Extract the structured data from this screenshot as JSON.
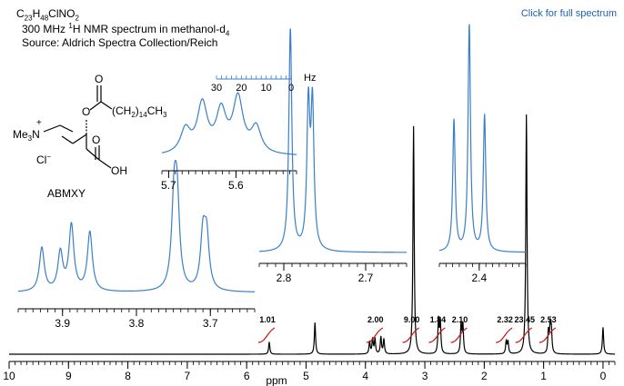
{
  "header": {
    "formula_c": "C",
    "formula_c_sub": "23",
    "formula_h": "H",
    "formula_h_sub": "48",
    "formula_rest": "ClNO",
    "formula_rest_sub": "2",
    "line2_pre": "300 MHz ",
    "line2_sup": "1",
    "line2_mid": "H NMR spectrum in methanol-d",
    "line2_sub": "4",
    "line3": "Source: Aldrich Spectra Collection/Reich",
    "full_spectrum_link": "Click for full spectrum"
  },
  "structure": {
    "nme3": "Me",
    "nme3_sub": "3",
    "n_label": "N",
    "plus": "+",
    "cl": "Cl",
    "cl_sup": "−",
    "o_ester": "O",
    "o_carbonyl": "O",
    "chain": "(CH",
    "chain_sub1": "2",
    "chain_paren": ")",
    "chain_sub2": "14",
    "chain_end": "CH",
    "chain_end_sub": "3",
    "acid_o": "O",
    "acid_oh": "OH",
    "label": "ABMXY"
  },
  "colors": {
    "main_trace": "#000000",
    "inset_trace": "#3a7fc8",
    "integral": "#cc1111",
    "label": "#000000"
  },
  "chart_data": [
    {
      "type": "line",
      "id": "main",
      "xlabel": "ppm",
      "xlim": [
        10,
        -0.2
      ],
      "x_ticks": [
        10,
        9,
        8,
        7,
        6,
        5,
        4,
        3,
        2,
        1,
        0
      ],
      "x_tick_labels": [
        "10",
        "9",
        "8",
        "7",
        "6",
        "5",
        "4",
        "3",
        "2",
        "1",
        "0"
      ],
      "peaks": [
        {
          "ppm": 5.62,
          "h": 0.05
        },
        {
          "ppm": 4.85,
          "h": 0.13
        },
        {
          "ppm": 3.93,
          "h": 0.05
        },
        {
          "ppm": 3.88,
          "h": 0.06
        },
        {
          "ppm": 3.84,
          "h": 0.06
        },
        {
          "ppm": 3.74,
          "h": 0.07
        },
        {
          "ppm": 3.69,
          "h": 0.06
        },
        {
          "ppm": 3.19,
          "h": 0.93
        },
        {
          "ppm": 2.77,
          "h": 0.14
        },
        {
          "ppm": 2.74,
          "h": 0.13
        },
        {
          "ppm": 2.39,
          "h": 0.12
        },
        {
          "ppm": 2.36,
          "h": 0.12
        },
        {
          "ppm": 1.63,
          "h": 0.05
        },
        {
          "ppm": 1.6,
          "h": 0.05
        },
        {
          "ppm": 1.29,
          "h": 0.98
        },
        {
          "ppm": 0.92,
          "h": 0.09
        },
        {
          "ppm": 0.89,
          "h": 0.11
        },
        {
          "ppm": 0.87,
          "h": 0.09
        },
        {
          "ppm": 0.0,
          "h": 0.11
        }
      ],
      "integrals": [
        {
          "ppm": 5.62,
          "value": "1.01"
        },
        {
          "ppm": 3.8,
          "value": "2.00"
        },
        {
          "ppm": 3.19,
          "value": "9.00"
        },
        {
          "ppm": 2.75,
          "value": "1.84"
        },
        {
          "ppm": 2.38,
          "value": "2.10"
        },
        {
          "ppm": 1.62,
          "value": "2.32"
        },
        {
          "ppm": 1.29,
          "value": "23.45"
        },
        {
          "ppm": 0.89,
          "value": "2.53"
        }
      ]
    },
    {
      "type": "line",
      "id": "inset-3.8",
      "xlim": [
        3.96,
        3.64
      ],
      "x_ticks": [
        3.9,
        3.8,
        3.7
      ],
      "x_tick_labels": [
        "3.9",
        "3.8",
        "3.7"
      ],
      "peaks": [
        {
          "ppm": 3.928,
          "h": 0.48
        },
        {
          "ppm": 3.903,
          "h": 0.42
        },
        {
          "ppm": 3.888,
          "h": 0.72
        },
        {
          "ppm": 3.863,
          "h": 0.65
        },
        {
          "ppm": 3.749,
          "h": 0.92
        },
        {
          "ppm": 3.745,
          "h": 0.88
        },
        {
          "ppm": 3.71,
          "h": 0.58
        },
        {
          "ppm": 3.705,
          "h": 0.56
        }
      ]
    },
    {
      "type": "line",
      "id": "inset-5.6",
      "xlim": [
        5.71,
        5.51
      ],
      "x_ticks": [
        5.7,
        5.6
      ],
      "x_tick_labels": [
        "5.7",
        "5.6"
      ],
      "hz_ticks": [
        30,
        20,
        10,
        0
      ],
      "hz_label": "Hz",
      "peaks": [
        {
          "ppm": 5.675,
          "h": 0.35
        },
        {
          "ppm": 5.65,
          "h": 0.72
        },
        {
          "ppm": 5.622,
          "h": 0.6
        },
        {
          "ppm": 5.597,
          "h": 0.8
        },
        {
          "ppm": 5.57,
          "h": 0.38
        }
      ]
    },
    {
      "type": "line",
      "id": "inset-2.75",
      "xlim": [
        2.83,
        2.65
      ],
      "x_ticks": [
        2.8,
        2.7
      ],
      "x_tick_labels": [
        "2.8",
        "2.7"
      ],
      "peaks": [
        {
          "ppm": 2.792,
          "h": 0.98
        },
        {
          "ppm": 2.77,
          "h": 0.62
        },
        {
          "ppm": 2.765,
          "h": 0.62
        }
      ]
    },
    {
      "type": "line",
      "id": "inset-2.4",
      "xlim": [
        2.46,
        2.33
      ],
      "x_ticks": [
        2.4
      ],
      "x_tick_labels": [
        "2.4"
      ],
      "peaks": [
        {
          "ppm": 2.438,
          "h": 0.58
        },
        {
          "ppm": 2.415,
          "h": 1.0
        },
        {
          "ppm": 2.392,
          "h": 0.6
        }
      ]
    }
  ]
}
